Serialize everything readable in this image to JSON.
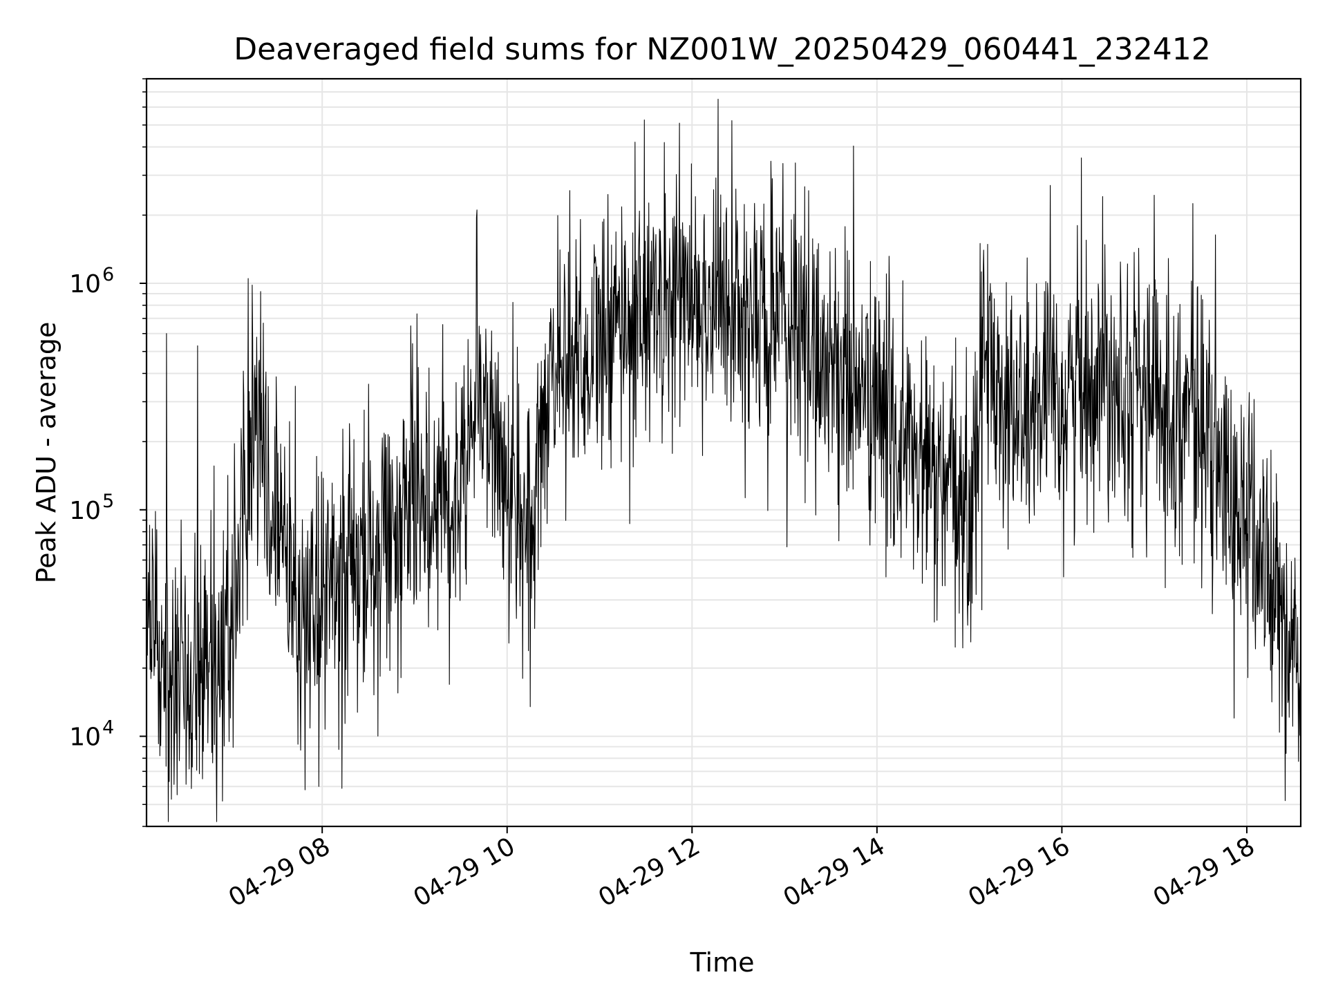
{
  "chart_data": {
    "type": "line",
    "title": "Deaveraged field sums for NZ001W_20250429_060441_232412",
    "xlabel": "Time",
    "ylabel": "Peak ADU - average",
    "yscale": "log",
    "ylim": [
      4000,
      8000000
    ],
    "xlim": [
      "2025-04-29 06:06",
      "2025-04-29 18:35"
    ],
    "grid": true,
    "legend": "none",
    "x_tick_labels": [
      {
        "t": "2025-04-29 08:00",
        "label": "04-29 08"
      },
      {
        "t": "2025-04-29 10:00",
        "label": "04-29 10"
      },
      {
        "t": "2025-04-29 12:00",
        "label": "04-29 12"
      },
      {
        "t": "2025-04-29 14:00",
        "label": "04-29 14"
      },
      {
        "t": "2025-04-29 16:00",
        "label": "04-29 16"
      },
      {
        "t": "2025-04-29 18:00",
        "label": "04-29 18"
      }
    ],
    "y_tick_labels": [
      {
        "value": 10000,
        "base": "10",
        "exp": "4"
      },
      {
        "value": 100000,
        "base": "10",
        "exp": "5"
      },
      {
        "value": 1000000,
        "base": "10",
        "exp": "6"
      }
    ],
    "series": [
      {
        "color": "#000000",
        "points": [
          [
            "2025-04-29 06:06",
            25000
          ],
          [
            "2025-04-29 06:30",
            22000
          ],
          [
            "2025-04-29 07:00",
            24000
          ],
          [
            "2025-04-29 07:10",
            150000
          ],
          [
            "2025-04-29 07:20",
            200000
          ],
          [
            "2025-04-29 07:30",
            90000
          ],
          [
            "2025-04-29 07:45",
            35000
          ],
          [
            "2025-04-29 08:00",
            40000
          ],
          [
            "2025-04-29 08:30",
            60000
          ],
          [
            "2025-04-29 09:00",
            110000
          ],
          [
            "2025-04-29 09:30",
            130000
          ],
          [
            "2025-04-29 09:40",
            400000
          ],
          [
            "2025-04-29 10:00",
            130000
          ],
          [
            "2025-04-29 10:15",
            70000
          ],
          [
            "2025-04-29 10:30",
            500000
          ],
          [
            "2025-04-29 11:00",
            500000
          ],
          [
            "2025-04-29 11:30",
            800000
          ],
          [
            "2025-04-29 12:00",
            900000
          ],
          [
            "2025-04-29 12:30",
            700000
          ],
          [
            "2025-04-29 13:00",
            650000
          ],
          [
            "2025-04-29 13:30",
            450000
          ],
          [
            "2025-04-29 14:00",
            280000
          ],
          [
            "2025-04-29 14:30",
            150000
          ],
          [
            "2025-04-29 15:00",
            90000
          ],
          [
            "2025-04-29 15:10",
            500000
          ],
          [
            "2025-04-29 15:30",
            250000
          ],
          [
            "2025-04-29 16:00",
            300000
          ],
          [
            "2025-04-29 16:30",
            450000
          ],
          [
            "2025-04-29 17:00",
            300000
          ],
          [
            "2025-04-29 17:30",
            250000
          ],
          [
            "2025-04-29 17:45",
            120000
          ],
          [
            "2025-04-29 18:00",
            90000
          ],
          [
            "2025-04-29 18:20",
            40000
          ],
          [
            "2025-04-29 18:35",
            18000
          ]
        ],
        "notable_spikes": [
          [
            "2025-04-29 06:19",
            600000
          ],
          [
            "2025-04-29 06:39",
            530000
          ],
          [
            "2025-04-29 07:12",
            1050000
          ],
          [
            "2025-04-29 07:49",
            5800
          ],
          [
            "2025-04-29 09:40",
            1950000
          ],
          [
            "2025-04-29 10:15",
            13500
          ],
          [
            "2025-04-29 11:23",
            4200000
          ],
          [
            "2025-04-29 12:17",
            6500000
          ],
          [
            "2025-04-29 13:07",
            3400000
          ],
          [
            "2025-04-29 15:07",
            1500000
          ],
          [
            "2025-04-29 16:10",
            1800000
          ],
          [
            "2025-04-29 17:00",
            2450000
          ],
          [
            "2025-04-29 17:25",
            2250000
          ],
          [
            "2025-04-29 18:25",
            5200
          ]
        ]
      }
    ]
  }
}
